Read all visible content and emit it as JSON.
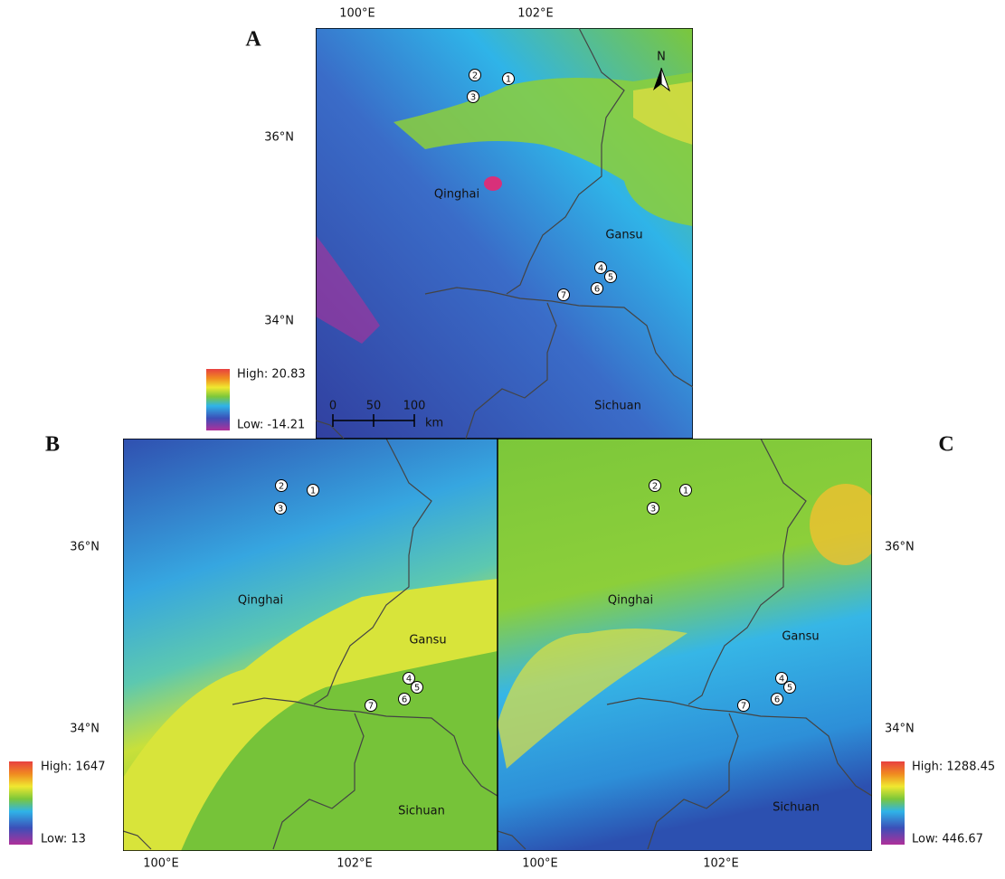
{
  "panels": [
    {
      "label": "A",
      "x_ticks": [
        "100°E",
        "102°E"
      ],
      "y_ticks": [
        "36°N",
        "34°N"
      ],
      "regions": [
        "Qinghai",
        "Gansu",
        "Sichuan"
      ],
      "sites": [
        "1",
        "2",
        "3",
        "4",
        "5",
        "6",
        "7"
      ],
      "legend": {
        "high": "High: 20.83",
        "low": "Low: -14.21"
      },
      "scale_bar": {
        "ticks": [
          "0",
          "50",
          "100"
        ],
        "unit": "km"
      },
      "north": "N"
    },
    {
      "label": "B",
      "x_ticks": [
        "100°E",
        "102°E"
      ],
      "y_ticks": [
        "36°N",
        "34°N"
      ],
      "regions": [
        "Qinghai",
        "Gansu",
        "Sichuan"
      ],
      "sites": [
        "1",
        "2",
        "3",
        "4",
        "5",
        "6",
        "7"
      ],
      "legend": {
        "high": "High: 1647",
        "low": "Low: 13"
      }
    },
    {
      "label": "C",
      "x_ticks": [
        "100°E",
        "102°E"
      ],
      "y_ticks": [
        "36°N",
        "34°N"
      ],
      "regions": [
        "Qinghai",
        "Gansu",
        "Sichuan"
      ],
      "sites": [
        "1",
        "2",
        "3",
        "4",
        "5",
        "6",
        "7"
      ],
      "legend": {
        "high": "High: 1288.45",
        "low": "Low: 446.67"
      }
    }
  ]
}
